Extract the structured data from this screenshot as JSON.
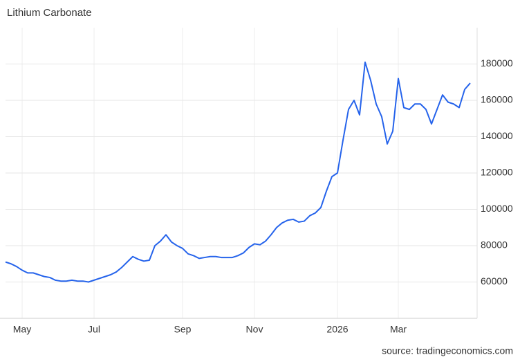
{
  "chart_data": {
    "type": "line",
    "title": "Lithium Carbonate",
    "source": "source: tradingeconomics.com",
    "categories": [
      null,
      null,
      null,
      "May",
      null,
      null,
      null,
      null,
      null,
      null,
      null,
      null,
      null,
      null,
      null,
      null,
      "Jul",
      null,
      null,
      null,
      null,
      null,
      null,
      null,
      null,
      null,
      null,
      null,
      null,
      null,
      null,
      null,
      "Sep",
      null,
      null,
      null,
      null,
      null,
      null,
      null,
      null,
      null,
      null,
      null,
      null,
      "Nov",
      null,
      null,
      null,
      null,
      null,
      null,
      null,
      null,
      null,
      null,
      null,
      null,
      null,
      null,
      "2026",
      null,
      null,
      null,
      null,
      null,
      null,
      null,
      null,
      null,
      null,
      "Mar",
      null,
      null,
      null,
      null,
      null,
      null,
      null,
      null,
      null,
      null,
      null,
      null,
      null
    ],
    "series": [
      {
        "name": "Lithium Carbonate",
        "color": "#2563eb",
        "values": [
          71000,
          70000,
          68500,
          66500,
          65000,
          65000,
          64000,
          63000,
          62500,
          61000,
          60500,
          60500,
          61000,
          60500,
          60500,
          60000,
          61000,
          62000,
          63000,
          64000,
          65500,
          68000,
          71000,
          74000,
          72500,
          71500,
          72000,
          80000,
          82500,
          86000,
          82000,
          80000,
          78500,
          75500,
          74500,
          73000,
          73500,
          74000,
          74000,
          73500,
          73500,
          73500,
          74500,
          76000,
          79000,
          81000,
          80500,
          82500,
          86000,
          90000,
          92500,
          94000,
          94500,
          93000,
          93500,
          96500,
          98000,
          101000,
          110000,
          118000,
          120000,
          138000,
          155000,
          160000,
          152000,
          181000,
          171000,
          158000,
          151000,
          136000,
          143000,
          172000,
          156000,
          155000,
          158000,
          158000,
          155000,
          147000,
          155000,
          163000,
          159000,
          158000,
          156000,
          166000,
          169500
        ]
      }
    ],
    "ylim": [
      40000,
      200000
    ],
    "yticks": [
      60000,
      80000,
      100000,
      120000,
      140000,
      160000,
      180000
    ],
    "grid": true
  }
}
